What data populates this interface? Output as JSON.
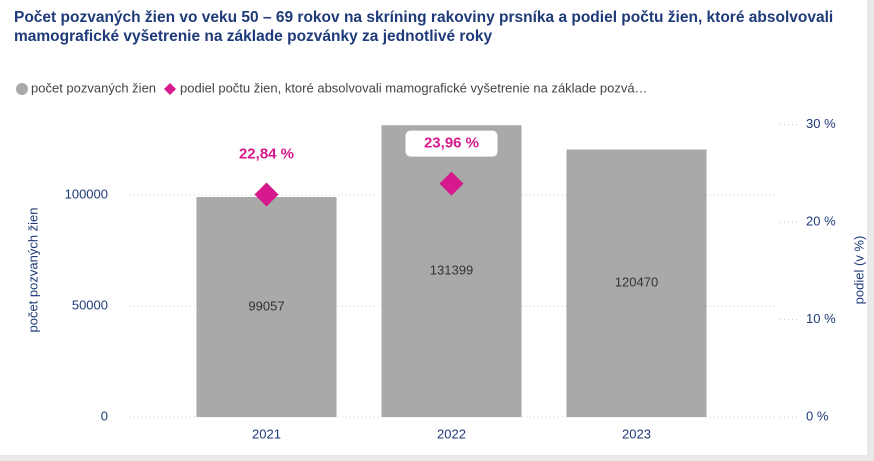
{
  "chart_data": {
    "type": "bar",
    "title": "Počet pozvaných žien vo veku 50 – 69 rokov na skríning rakoviny prsníka a podiel počtu žien, ktoré absolvovali mamografické vyšetrenie na základe pozvánky za jednotlivé roky",
    "categories": [
      "2021",
      "2022",
      "2023"
    ],
    "series": [
      {
        "name": "počet pozvaných žien",
        "color": "#a9a9a9",
        "values": [
          99057,
          131399,
          120470
        ]
      },
      {
        "name": "podiel počtu žien, ktoré absolvovali mamografické vyšetrenie na základe pozvá…",
        "color": "#d6198c",
        "type": "scatter",
        "marker": "diamond",
        "axis": "y2",
        "values": [
          22.84,
          23.96,
          null
        ],
        "value_labels": [
          "22,84 %",
          "23,96 %",
          null
        ]
      }
    ],
    "ylabel": "počet pozvaných žien",
    "y2label": "podiel (v %)",
    "ylim": [
      0,
      136000
    ],
    "yticks": [
      0,
      50000,
      100000
    ],
    "y2lim": [
      0,
      31
    ],
    "y2ticks": [
      {
        "value": 0,
        "label": "0 %"
      },
      {
        "value": 10,
        "label": "10 %"
      },
      {
        "value": 20,
        "label": "20 %"
      },
      {
        "value": 30,
        "label": "30 %"
      }
    ],
    "grid": true,
    "legend": "top-left"
  }
}
